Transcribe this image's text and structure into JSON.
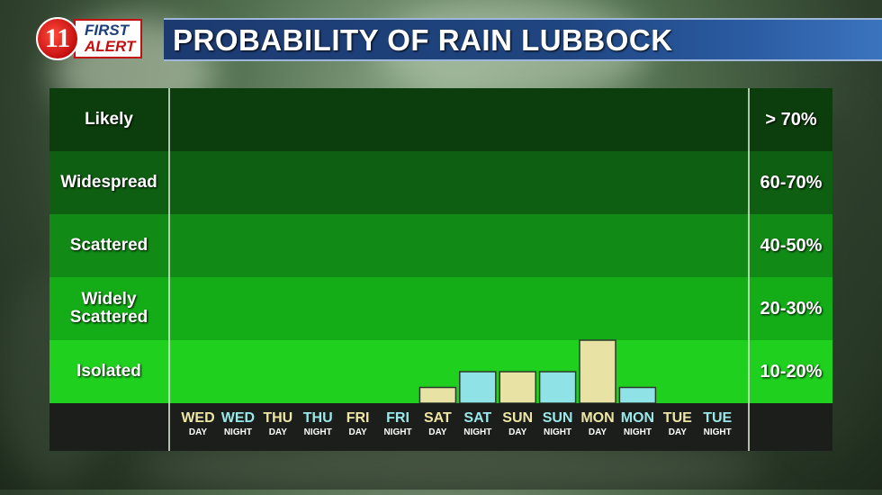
{
  "header": {
    "logo": {
      "number": "11",
      "line1": "FIRST",
      "line2": "ALERT"
    },
    "title": "PROBABILITY OF RAIN LUBBOCK"
  },
  "chart_data": {
    "type": "bar",
    "title": "PROBABILITY OF RAIN LUBBOCK",
    "categories": [
      {
        "day": "WED",
        "period": "DAY"
      },
      {
        "day": "WED",
        "period": "NIGHT"
      },
      {
        "day": "THU",
        "period": "DAY"
      },
      {
        "day": "THU",
        "period": "NIGHT"
      },
      {
        "day": "FRI",
        "period": "DAY"
      },
      {
        "day": "FRI",
        "period": "NIGHT"
      },
      {
        "day": "SAT",
        "period": "DAY"
      },
      {
        "day": "SAT",
        "period": "NIGHT"
      },
      {
        "day": "SUN",
        "period": "DAY"
      },
      {
        "day": "SUN",
        "period": "NIGHT"
      },
      {
        "day": "MON",
        "period": "DAY"
      },
      {
        "day": "MON",
        "period": "NIGHT"
      },
      {
        "day": "TUE",
        "period": "DAY"
      },
      {
        "day": "TUE",
        "period": "NIGHT"
      }
    ],
    "values": [
      0,
      0,
      0,
      0,
      0,
      0,
      5,
      10,
      10,
      10,
      20,
      5,
      0,
      0
    ],
    "bands": [
      {
        "label": "Likely",
        "range": "> 70%"
      },
      {
        "label": "Widespread",
        "range": "60-70%"
      },
      {
        "label": "Scattered",
        "range": "40-50%"
      },
      {
        "label": "Widely Scattered",
        "range": "20-30%"
      },
      {
        "label": "Isolated",
        "range": "10-20%"
      }
    ],
    "ylim": [
      0,
      100
    ],
    "colors": {
      "day_bar": "#e8e2a4",
      "night_bar": "#8fe3e6",
      "day_label": "#efe6a6",
      "night_label": "#9be8ea",
      "bands": [
        "#0c3d0c",
        "#0f5f12",
        "#118a16",
        "#14ad18",
        "#1fd01f"
      ]
    }
  }
}
